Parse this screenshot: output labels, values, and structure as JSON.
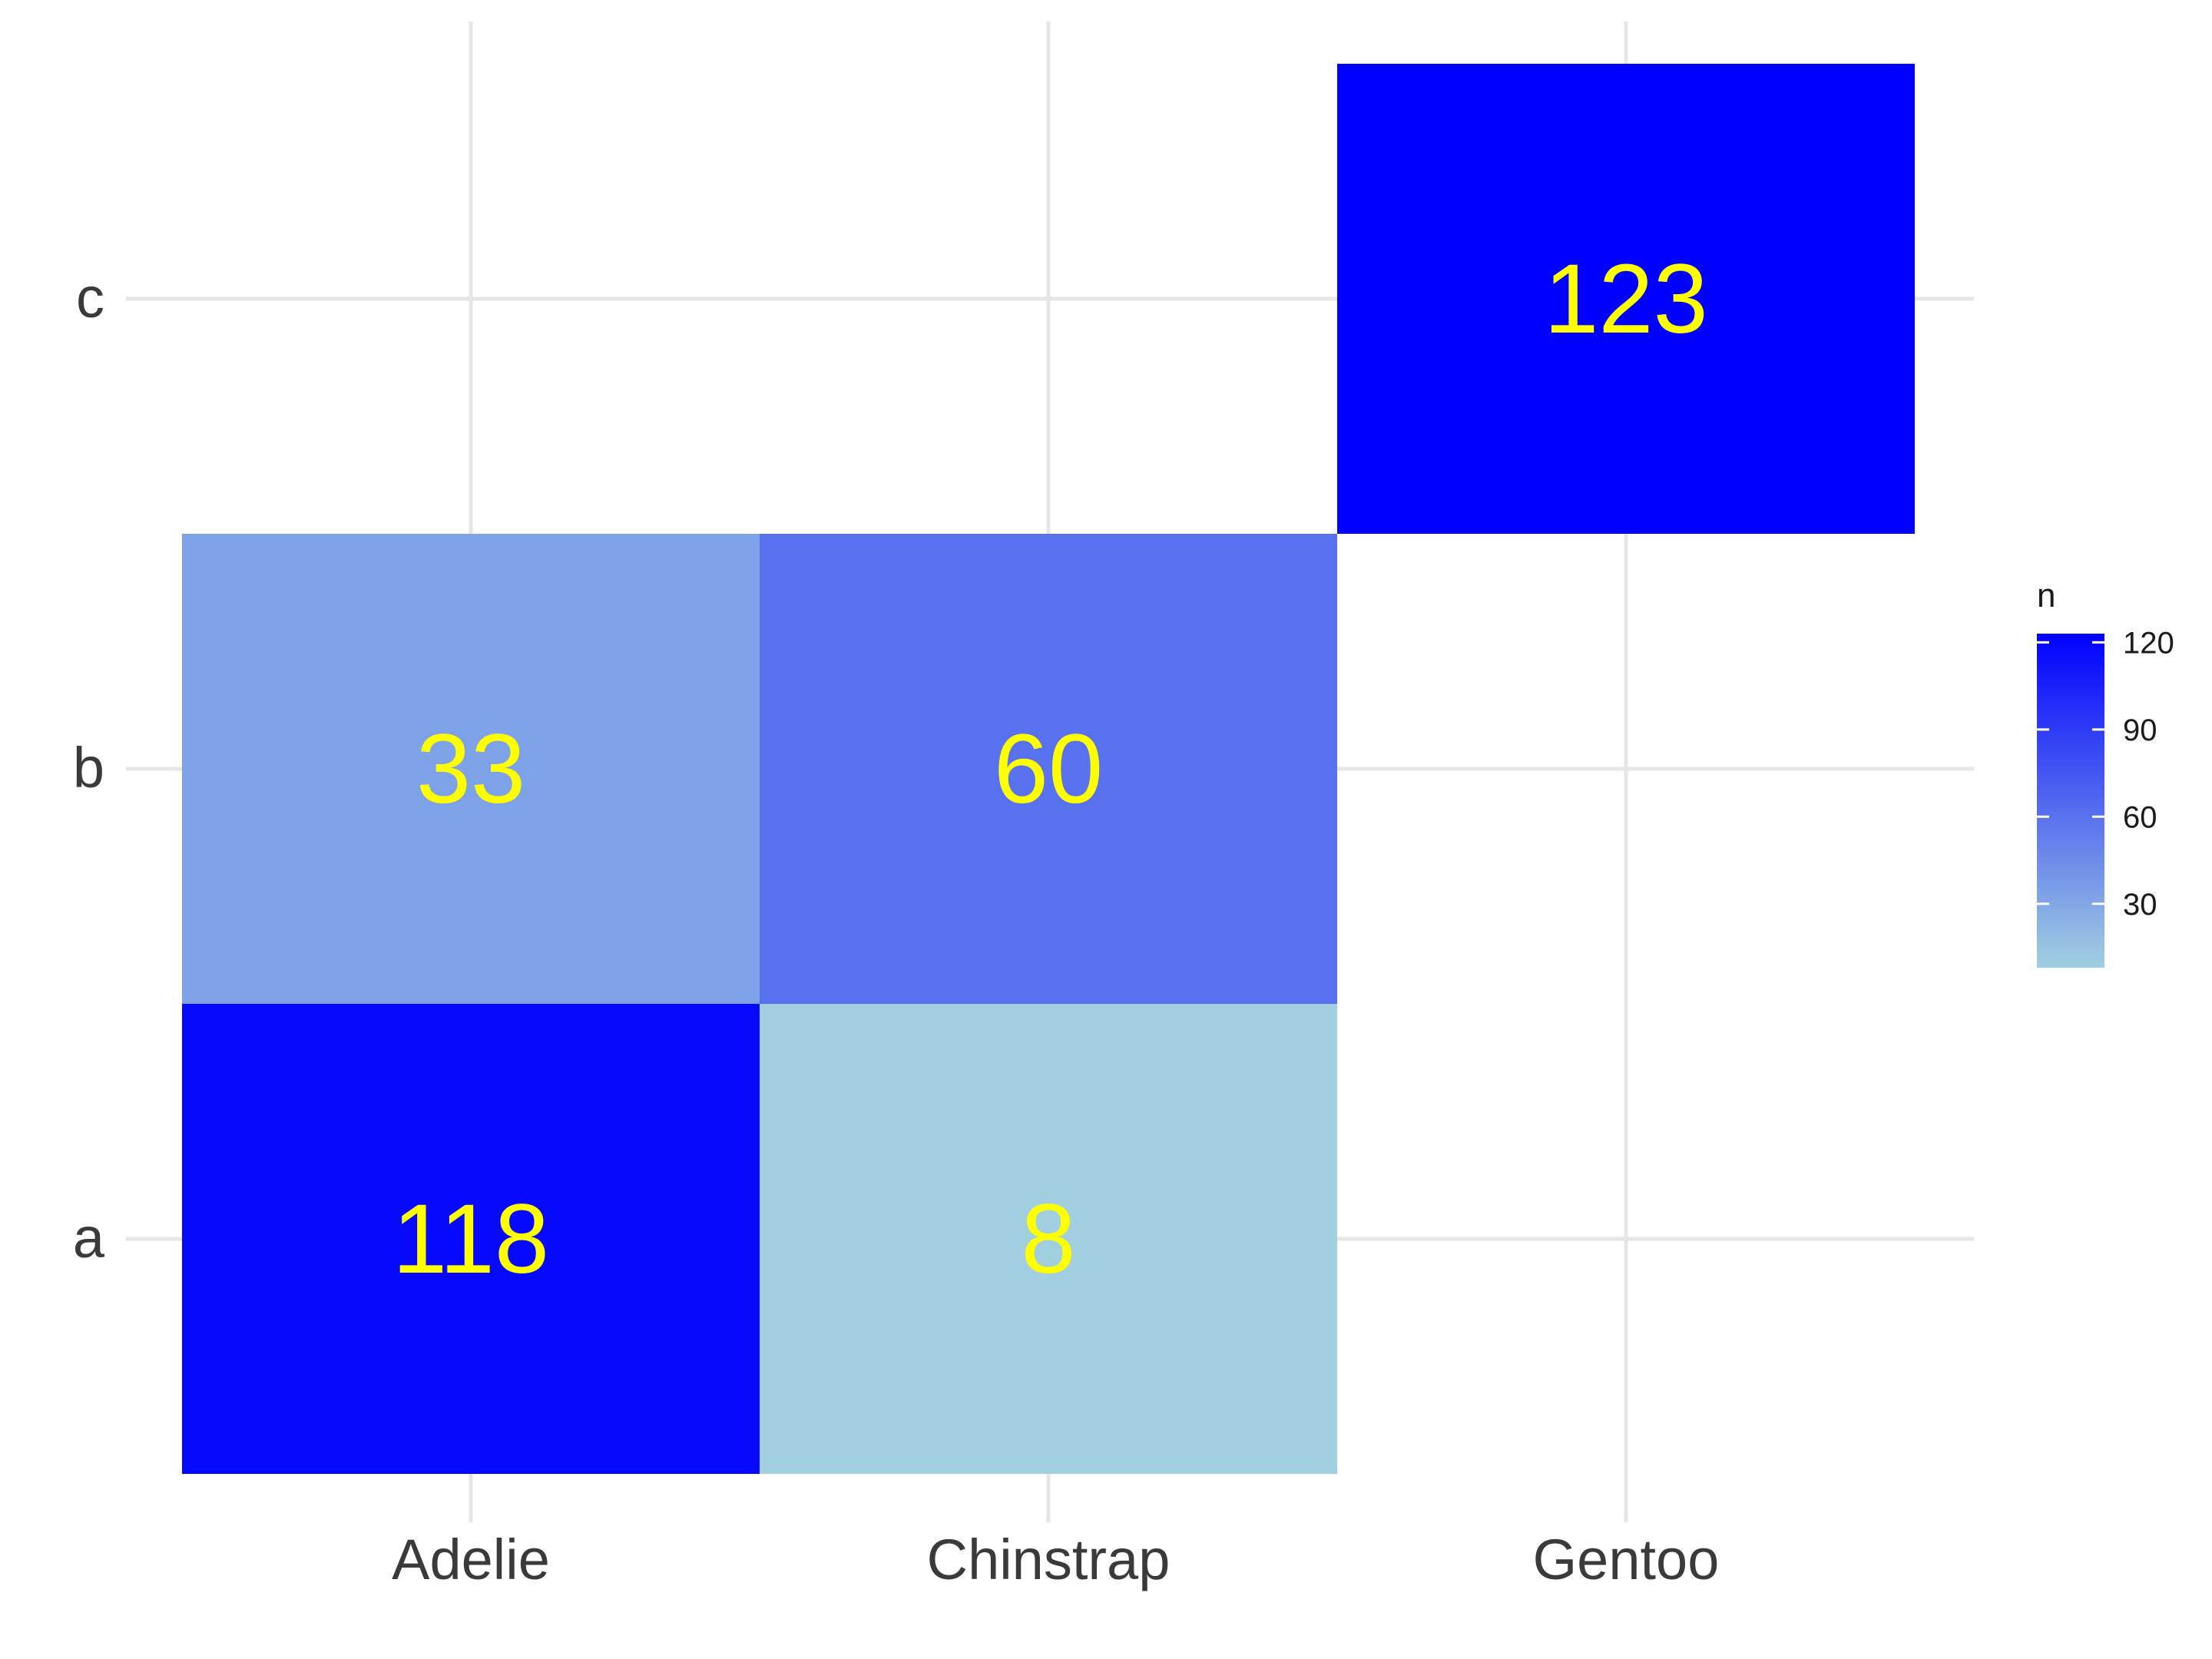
{
  "chart_data": {
    "type": "heatmap",
    "title": "",
    "xlabel": "",
    "ylabel": "",
    "x_categories": [
      "Adelie",
      "Chinstrap",
      "Gentoo"
    ],
    "y_categories": [
      "a",
      "b",
      "c"
    ],
    "cells": [
      {
        "x": "Adelie",
        "y": "a",
        "value": 118,
        "label": "118"
      },
      {
        "x": "Chinstrap",
        "y": "a",
        "value": 8,
        "label": "8"
      },
      {
        "x": "Adelie",
        "y": "b",
        "value": 33,
        "label": "33"
      },
      {
        "x": "Chinstrap",
        "y": "b",
        "value": 60,
        "label": "60"
      },
      {
        "x": "Gentoo",
        "y": "c",
        "value": 123,
        "label": "123"
      }
    ],
    "color_scale": {
      "low": "#a1cfe0",
      "high": "#0000ff",
      "min": 8,
      "max": 123
    },
    "label_color": "#ffff00",
    "grid": true,
    "legend": {
      "title": "n",
      "position": "right",
      "ticks": [
        30,
        60,
        90,
        120
      ],
      "tick_labels": [
        "30",
        "60",
        "90",
        "120"
      ]
    }
  }
}
